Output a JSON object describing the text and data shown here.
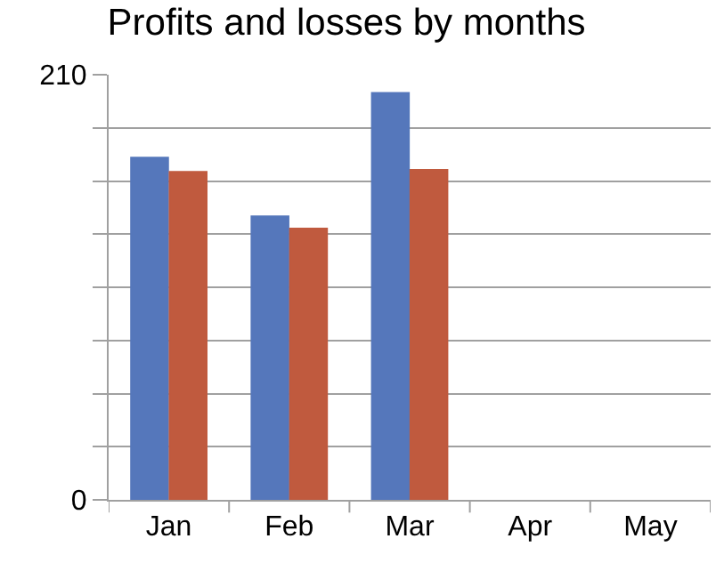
{
  "chart_data": {
    "type": "bar",
    "title": "Profits and losses by months",
    "categories": [
      "Jan",
      "Feb",
      "Mar",
      "Apr",
      "May"
    ],
    "series": [
      {
        "color": "#5577bb",
        "values": [
          169,
          140,
          201,
          null,
          null
        ]
      },
      {
        "color": "#c05a3e",
        "values": [
          162,
          134,
          163,
          null,
          null
        ]
      }
    ],
    "ylim": [
      0,
      210
    ],
    "yticks": [
      0,
      {
        "value": 26.25,
        "label": null
      },
      {
        "value": 52.5,
        "label": null
      },
      {
        "value": 78.75,
        "label": null
      },
      {
        "value": 105,
        "label": null
      },
      {
        "value": 131.25,
        "label": null
      },
      {
        "value": 157.5,
        "label": null
      },
      {
        "value": 183.75,
        "label": null
      },
      210
    ],
    "grid": "y"
  }
}
